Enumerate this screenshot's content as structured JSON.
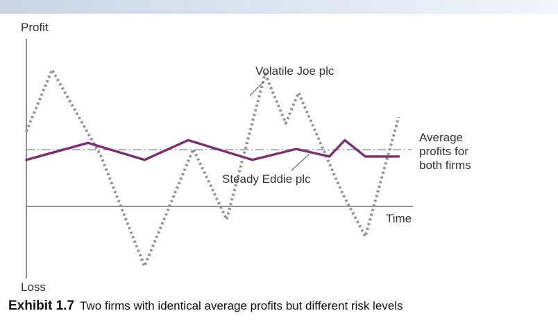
{
  "chart_data": {
    "type": "line",
    "ylabel_top": "Profit",
    "ylabel_bottom": "Loss",
    "xlabel": "Time",
    "x": [
      0,
      1,
      2,
      3,
      4,
      5,
      6,
      7,
      8,
      9,
      10,
      11,
      12,
      13,
      14,
      15,
      16
    ],
    "series": [
      {
        "name": "Volatile Joe plc",
        "style": "dotted",
        "color": "#8f8f8f",
        "x": [
          0,
          1,
          2.9,
          4.6,
          6.5,
          7.8,
          9.3,
          10.1,
          10.6,
          12.3,
          13.2,
          14.5
        ],
        "values": [
          27,
          118,
          -9,
          -172,
          1,
          -103,
          112,
          39,
          84,
          -64,
          -128,
          48
        ]
      },
      {
        "name": "Steady Eddie plc",
        "style": "solid",
        "color": "#7b2f6e",
        "x": [
          0,
          2.4,
          4.6,
          6.3,
          8.8,
          10.5,
          11.8,
          12.4,
          13.2,
          14.5
        ],
        "values": [
          -15,
          10,
          -15,
          14,
          -15,
          1,
          -10,
          14,
          -10,
          -10
        ]
      }
    ],
    "average_line": {
      "value": 0,
      "color": "#6b7fb3",
      "style": "dash-dot"
    },
    "annotations": {
      "volatile": "Volatile Joe plc",
      "steady": "Steady Eddie plc",
      "average": [
        "Average",
        "profits for",
        "both firms"
      ]
    },
    "ylim": [
      -190,
      180
    ],
    "xlim": [
      0,
      15
    ]
  },
  "caption": {
    "number": "Exhibit 1.7",
    "text": "Two firms with identical average profits but different risk levels"
  },
  "colors": {
    "axis": "#555555",
    "dotted_series": "#8f8f8f",
    "solid_series": "#7b2f6e",
    "average_line": "#6b7fb3"
  }
}
